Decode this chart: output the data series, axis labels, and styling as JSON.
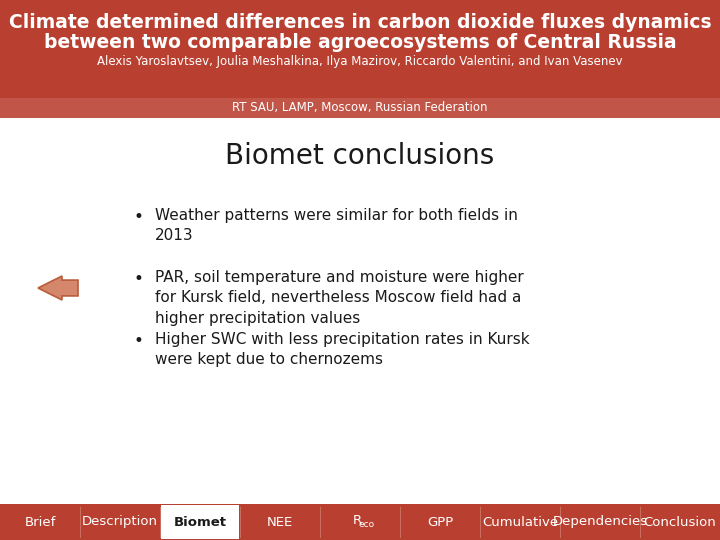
{
  "title_line1": "Climate determined differences in carbon dioxide fluxes dynamics",
  "title_line2": "between two comparable agroecosystems of Central Russia",
  "authors": "Alexis Yaroslavtsev, Joulia Meshalkina, Ilya Mazirov, Riccardo Valentini, and Ivan Vasenev",
  "affiliation": "RT SAU, LAMP, Moscow, Russian Federation",
  "section_title": "Biomet conclusions",
  "bullets": [
    "Weather patterns were similar for both fields in\n2013",
    "PAR, soil temperature and moisture were higher\nfor Kursk field, nevertheless Moscow field had a\nhigher precipitation values",
    "Higher SWC with less precipitation rates in Kursk\nwere kept due to chernozems"
  ],
  "arrow_bullet_index": 1,
  "nav_items": [
    "Brief",
    "Description",
    "Biomet",
    "NEE",
    "Reco",
    "GPP",
    "Cumulative",
    "Dependencies",
    "Conclusion"
  ],
  "nav_active": "Biomet",
  "header_bg": "#b94030",
  "affil_bg": "#c05548",
  "nav_bg": "#b94030",
  "white": "#ffffff",
  "black": "#1a1a1a",
  "arrow_face": "#d4876a",
  "arrow_edge": "#b85c3a",
  "title_fontsize": 13.5,
  "author_fontsize": 8.5,
  "affil_fontsize": 8.5,
  "section_fontsize": 20,
  "bullet_fontsize": 11,
  "nav_fontsize": 9.5,
  "fig_width": 7.2,
  "fig_height": 5.4,
  "dpi": 100
}
